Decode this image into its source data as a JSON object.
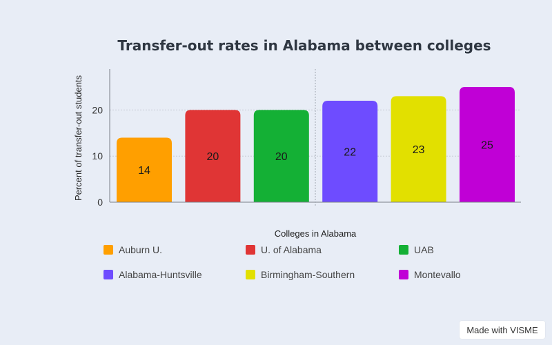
{
  "chart_data": {
    "type": "bar",
    "title": "Transfer-out rates in Alabama between colleges",
    "xlabel": "Colleges in Alabama",
    "ylabel": "Percent of transfer-out students",
    "categories": [
      "Auburn U.",
      "U. of Alabama",
      "UAB",
      "Alabama-Huntsville",
      "Birmingham-Southern",
      "Montevallo"
    ],
    "values": [
      14,
      20,
      20,
      22,
      23,
      25
    ],
    "colors": [
      "#ff9f00",
      "#e03535",
      "#14b035",
      "#6e4cff",
      "#e2e000",
      "#c000d6"
    ],
    "ylim": [
      0,
      25
    ],
    "yticks": [
      0,
      10,
      20
    ],
    "grid": true,
    "legend_position": "bottom"
  },
  "badge": {
    "text": "Made with VISME"
  }
}
